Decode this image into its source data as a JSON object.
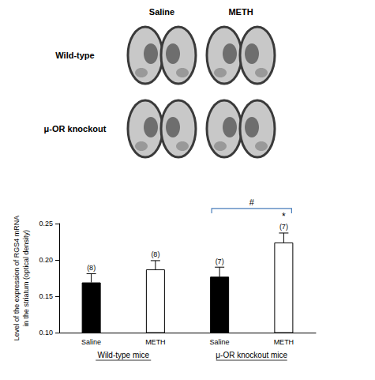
{
  "images": {
    "column_labels": [
      "Saline",
      "METH"
    ],
    "row_labels": [
      "Wild-type",
      "μ-OR knockout"
    ]
  },
  "chart_data": {
    "type": "bar",
    "categories": [
      "Saline",
      "METH",
      "Saline",
      "METH"
    ],
    "groups": [
      {
        "label": "Wild-type mice",
        "size": 2
      },
      {
        "label": "μ-OR knockout mice",
        "size": 2
      }
    ],
    "values": [
      0.169,
      0.187,
      0.177,
      0.224
    ],
    "errors": [
      0.012,
      0.012,
      0.013,
      0.013
    ],
    "n_labels": [
      "(8)",
      "(8)",
      "(7)",
      "(7)"
    ],
    "colors": [
      "#000000",
      "#ffffff",
      "#000000",
      "#ffffff"
    ],
    "y_label": "Level of the expression of RGS4 mRNA in the striatum (optical density)",
    "ylim": [
      0.1,
      0.25
    ],
    "yticks": [
      {
        "value": 0.1,
        "label": "0.10"
      },
      {
        "value": 0.15,
        "label": "0.15"
      },
      {
        "value": 0.2,
        "label": "0.20"
      },
      {
        "value": 0.25,
        "label": "0.25"
      }
    ],
    "grid": false,
    "annotations": [
      {
        "text": "*",
        "span": [
          3,
          3
        ]
      },
      {
        "text": "#",
        "span": [
          2,
          3
        ]
      }
    ]
  }
}
